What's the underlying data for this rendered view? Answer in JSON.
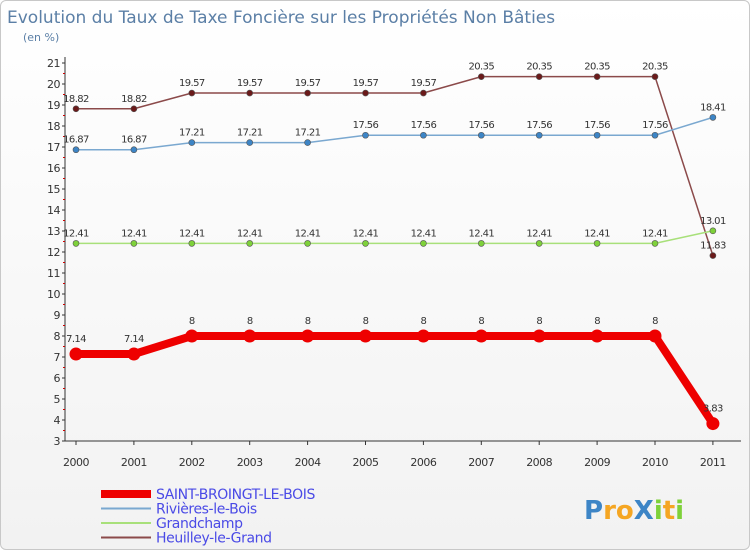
{
  "chart_data": {
    "type": "line",
    "title": "Evolution du Taux de Taxe Foncière sur les Propriétés Non Bâties",
    "subtitle": "(en %)",
    "x": [
      "2000",
      "2001",
      "2002",
      "2003",
      "2004",
      "2005",
      "2006",
      "2007",
      "2008",
      "2009",
      "2010",
      "2011"
    ],
    "ylim": [
      3,
      21
    ],
    "yticks": [
      3,
      4,
      5,
      6,
      7,
      8,
      9,
      10,
      11,
      12,
      13,
      14,
      15,
      16,
      17,
      18,
      19,
      20,
      21
    ],
    "grid": false,
    "legend_position": "bottom-left",
    "series": [
      {
        "name": "Heuilley-le-Grand",
        "color": "#8b4a4a",
        "marker_color": "#6b1a1a",
        "values": [
          18.82,
          18.82,
          19.57,
          19.57,
          19.57,
          19.57,
          19.57,
          20.35,
          20.35,
          20.35,
          20.35,
          11.83
        ],
        "labels": [
          "18.82",
          "18.82",
          "19.57",
          "19.57",
          "19.57",
          "19.57",
          "19.57",
          "20.35",
          "20.35",
          "20.35",
          "20.35",
          "11.83"
        ]
      },
      {
        "name": "Rivières-le-Bois",
        "color": "#7aa8d0",
        "marker_color": "#3d85c6",
        "values": [
          16.87,
          16.87,
          17.21,
          17.21,
          17.21,
          17.56,
          17.56,
          17.56,
          17.56,
          17.56,
          17.56,
          18.41
        ],
        "labels": [
          "16.87",
          "16.87",
          "17.21",
          "17.21",
          "17.21",
          "17.56",
          "17.56",
          "17.56",
          "17.56",
          "17.56",
          "17.56",
          "18.41"
        ]
      },
      {
        "name": "Grandchamp",
        "color": "#a8e07a",
        "marker_color": "#7ed13a",
        "values": [
          12.41,
          12.41,
          12.41,
          12.41,
          12.41,
          12.41,
          12.41,
          12.41,
          12.41,
          12.41,
          12.41,
          13.01
        ],
        "labels": [
          "12.41",
          "12.41",
          "12.41",
          "12.41",
          "12.41",
          "12.41",
          "12.41",
          "12.41",
          "12.41",
          "12.41",
          "12.41",
          "13.01"
        ]
      },
      {
        "name": "SAINT-BROINGT-LE-BOIS",
        "color": "#ee0000",
        "marker_color": "#ee0000",
        "values": [
          7.14,
          7.14,
          8,
          8,
          8,
          8,
          8,
          8,
          8,
          8,
          8,
          3.83
        ],
        "labels": [
          "7.14",
          "7.14",
          "8",
          "8",
          "8",
          "8",
          "8",
          "8",
          "8",
          "8",
          "8",
          "3.83"
        ]
      }
    ],
    "legend": [
      "SAINT-BROINGT-LE-BOIS",
      "Rivières-le-Bois",
      "Grandchamp",
      "Heuilley-le-Grand"
    ]
  },
  "logo": {
    "text": "ProXiti",
    "letters": [
      "P",
      "r",
      "o",
      "X",
      "i",
      "t",
      "i"
    ],
    "colors": [
      "#3d85c6",
      "#f5a623",
      "#f5a623",
      "#3d85c6",
      "#7ed13a",
      "#f5a623",
      "#7ed13a"
    ]
  }
}
